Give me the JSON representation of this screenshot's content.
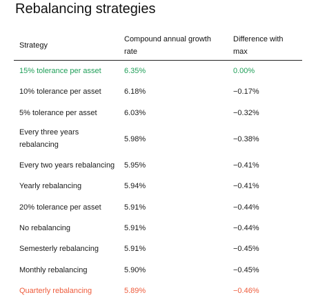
{
  "title": "Rebalancing strategies",
  "table": {
    "headers": {
      "strategy": "Strategy",
      "cagr": "Compound annual growth rate",
      "difference": "Difference with max"
    },
    "rows": [
      {
        "strategy": "15% tolerance per asset",
        "cagr": "6.35%",
        "difference": "0.00%",
        "highlight": "best",
        "color": "#1e9e57"
      },
      {
        "strategy": "10% tolerance per asset",
        "cagr": "6.18%",
        "difference": "−0.17%"
      },
      {
        "strategy": "5% tolerance per asset",
        "cagr": "6.03%",
        "difference": "−0.32%"
      },
      {
        "strategy": "Every three years rebalancing",
        "cagr": "5.98%",
        "difference": "−0.38%"
      },
      {
        "strategy": "Every two years rebalancing",
        "cagr": "5.95%",
        "difference": "−0.41%"
      },
      {
        "strategy": "Yearly rebalancing",
        "cagr": "5.94%",
        "difference": "−0.41%"
      },
      {
        "strategy": "20% tolerance per asset",
        "cagr": "5.91%",
        "difference": "−0.44%"
      },
      {
        "strategy": "No rebalancing",
        "cagr": "5.91%",
        "difference": "−0.44%"
      },
      {
        "strategy": "Semesterly rebalancing",
        "cagr": "5.91%",
        "difference": "−0.45%"
      },
      {
        "strategy": "Monthly rebalancing",
        "cagr": "5.90%",
        "difference": "−0.45%"
      },
      {
        "strategy": "Quarterly rebalancing",
        "cagr": "5.89%",
        "difference": "−0.46%",
        "highlight": "worst",
        "color": "#ee5b3b"
      }
    ]
  }
}
